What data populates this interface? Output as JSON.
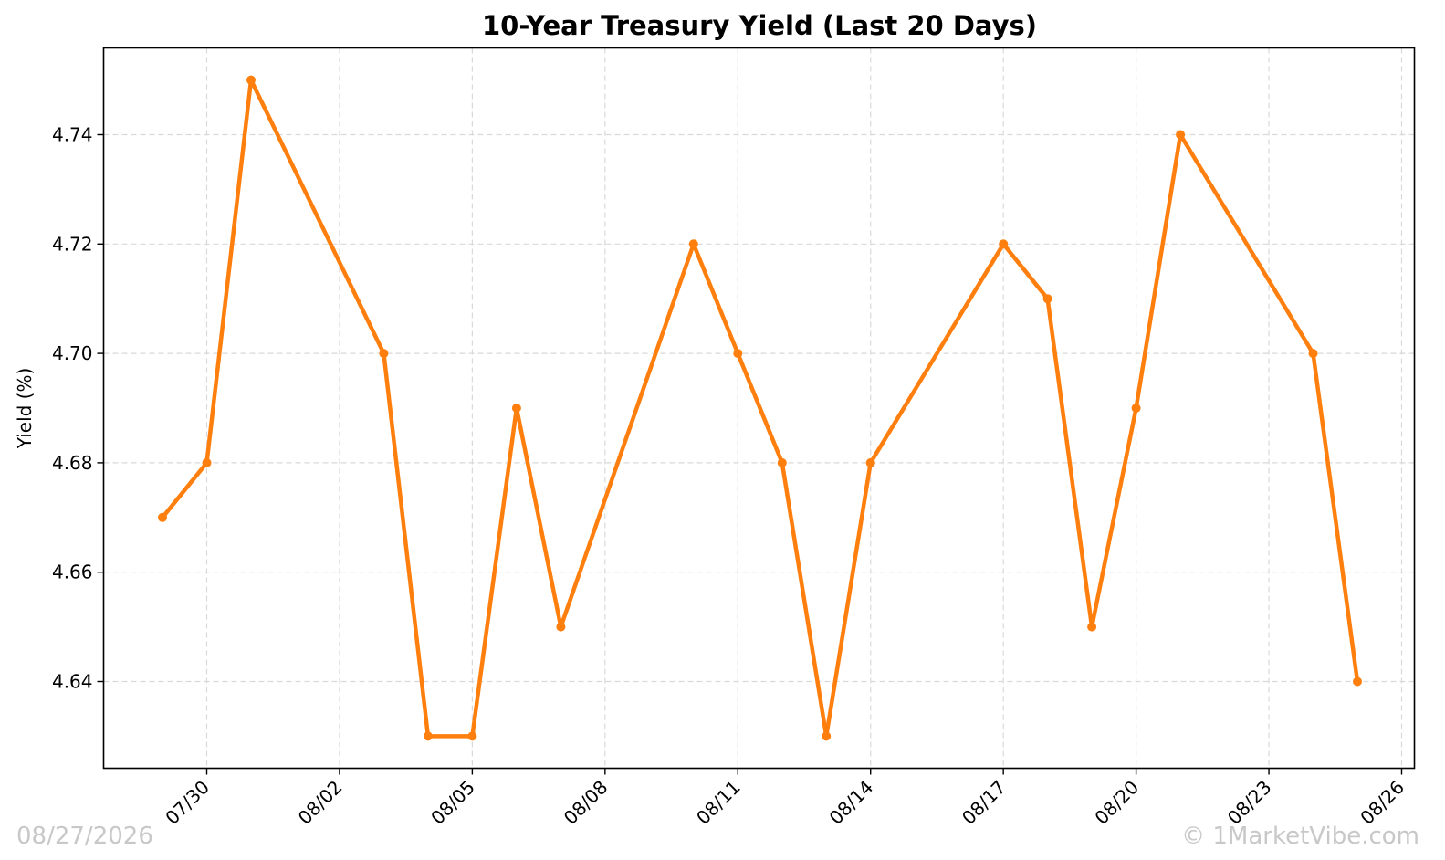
{
  "watermarks": {
    "date": "08/27/2026",
    "copyright": "© 1MarketVibe.com"
  },
  "colors": {
    "line": "#ff7f0e",
    "grid": "#d9d9d9",
    "axis": "#000000",
    "watermark": "#c8c8c8"
  },
  "chart_data": {
    "type": "line",
    "title": "10-Year Treasury Yield (Last 20 Days)",
    "xlabel": "",
    "ylabel": "Yield (%)",
    "x": [
      "07/29",
      "07/30",
      "07/31",
      "08/03",
      "08/04",
      "08/05",
      "08/06",
      "08/07",
      "08/10",
      "08/11",
      "08/12",
      "08/13",
      "08/14",
      "08/17",
      "08/18",
      "08/19",
      "08/20",
      "08/21",
      "08/24",
      "08/25"
    ],
    "series": [
      {
        "name": "",
        "values": [
          4.67,
          4.68,
          4.75,
          4.7,
          4.63,
          4.63,
          4.69,
          4.65,
          4.72,
          4.7,
          4.68,
          4.63,
          4.68,
          4.72,
          4.71,
          4.65,
          4.69,
          4.74,
          4.7,
          4.64
        ]
      }
    ],
    "xlim": [
      "07/28",
      "08/26"
    ],
    "ylim": [
      4.624,
      4.756
    ],
    "xticks": [
      "07/30",
      "08/02",
      "08/05",
      "08/08",
      "08/11",
      "08/14",
      "08/17",
      "08/20",
      "08/23",
      "08/26"
    ],
    "yticks": [
      "4.64",
      "4.66",
      "4.68",
      "4.70",
      "4.72",
      "4.74"
    ],
    "grid": true,
    "legend": "none",
    "marker": "circle"
  }
}
